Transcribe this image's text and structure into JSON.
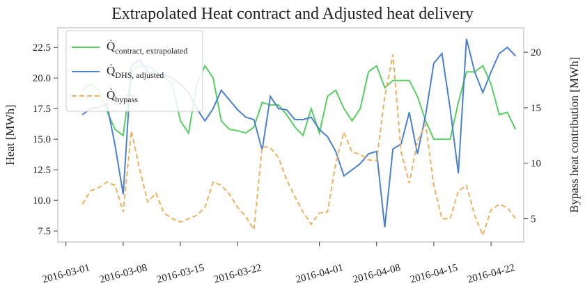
{
  "chart_data": {
    "type": "line",
    "title": "Extrapolated Heat contract and Adjusted heat delivery",
    "ylabel": "Heat [MWh]",
    "y2label": "Bypass heat contribution [MWh]",
    "x": [
      "2016-03-03",
      "2016-03-04",
      "2016-03-05",
      "2016-03-06",
      "2016-03-07",
      "2016-03-08",
      "2016-03-09",
      "2016-03-10",
      "2016-03-11",
      "2016-03-12",
      "2016-03-13",
      "2016-03-14",
      "2016-03-15",
      "2016-03-16",
      "2016-03-17",
      "2016-03-18",
      "2016-03-19",
      "2016-03-20",
      "2016-03-21",
      "2016-03-22",
      "2016-03-23",
      "2016-03-24",
      "2016-03-25",
      "2016-03-26",
      "2016-03-27",
      "2016-03-28",
      "2016-03-29",
      "2016-03-30",
      "2016-03-31",
      "2016-04-01",
      "2016-04-02",
      "2016-04-03",
      "2016-04-04",
      "2016-04-05",
      "2016-04-06",
      "2016-04-07",
      "2016-04-08",
      "2016-04-09",
      "2016-04-10",
      "2016-04-11",
      "2016-04-12",
      "2016-04-13",
      "2016-04-14",
      "2016-04-15",
      "2016-04-16",
      "2016-04-17",
      "2016-04-18",
      "2016-04-19",
      "2016-04-20",
      "2016-04-21",
      "2016-04-22",
      "2016-04-23",
      "2016-04-24",
      "2016-04-25"
    ],
    "series": [
      {
        "name": "Q̇",
        "name_sub": "contract, extrapolated",
        "color": "#55d060",
        "dash": false,
        "axis": "y",
        "values": [
          19.0,
          19.5,
          19.0,
          17.3,
          15.8,
          15.3,
          20.5,
          21.0,
          21.0,
          20.5,
          20.1,
          19.5,
          16.5,
          15.5,
          19.5,
          21.0,
          20.0,
          16.5,
          15.8,
          15.7,
          15.5,
          16.0,
          18.0,
          17.8,
          17.8,
          17.0,
          16.0,
          15.3,
          17.5,
          15.5,
          18.5,
          19.0,
          17.5,
          16.5,
          17.5,
          20.5,
          21.0,
          19.2,
          19.8,
          19.8,
          19.8,
          18.5,
          16.5,
          15.0,
          15.0,
          15.0,
          18.0,
          20.5,
          20.5,
          21.0,
          19.5,
          17.0,
          17.2,
          15.8
        ]
      },
      {
        "name": "Q̇",
        "name_sub": "DHS, adjusted",
        "color": "#4a80d0",
        "dash": false,
        "axis": "y",
        "values": [
          17.0,
          17.5,
          17.6,
          17.9,
          14.5,
          10.5,
          21.0,
          21.5,
          20.5,
          20.3,
          20.3,
          20.0,
          19.5,
          18.8,
          17.5,
          16.5,
          17.5,
          19.0,
          18.2,
          17.4,
          16.8,
          16.6,
          14.1,
          18.5,
          17.5,
          17.4,
          16.6,
          16.6,
          16.8,
          15.8,
          15.2,
          14.0,
          12.0,
          12.5,
          13.0,
          13.8,
          14.0,
          7.8,
          14.2,
          14.6,
          17.2,
          13.8,
          17.0,
          21.2,
          22.0,
          17.5,
          12.2,
          23.2,
          20.5,
          18.8,
          20.5,
          22.0,
          22.5,
          21.8
        ]
      },
      {
        "name": "Q̇",
        "name_sub": "bypass",
        "color": "#f0b060",
        "dash": true,
        "axis": "y2",
        "values": [
          6.3,
          7.5,
          7.8,
          8.3,
          8.0,
          5.6,
          12.9,
          9.5,
          6.5,
          7.3,
          5.5,
          5.0,
          4.7,
          5.0,
          5.3,
          6.0,
          8.3,
          8.0,
          7.2,
          6.0,
          5.2,
          4.0,
          11.5,
          11.4,
          10.5,
          8.5,
          7.0,
          5.6,
          4.5,
          5.5,
          5.6,
          10.0,
          12.8,
          11.0,
          10.8,
          10.3,
          10.2,
          16.0,
          19.8,
          11.0,
          8.2,
          12.0,
          13.5,
          8.0,
          5.0,
          5.0,
          7.5,
          8.0,
          5.3,
          3.5,
          5.8,
          6.3,
          6.0,
          5.0
        ]
      }
    ],
    "xlim": [
      "2016-02-29",
      "2016-04-26"
    ],
    "xticks": [
      "2016-03-01",
      "2016-03-08",
      "2016-03-15",
      "2016-03-22",
      "2016-04-01",
      "2016-04-08",
      "2016-04-15",
      "2016-04-22"
    ],
    "ylim": [
      6.6,
      24.1
    ],
    "yticks": [
      7.5,
      {
        "value": 10,
        "label": "10.0"
      },
      12.5,
      {
        "value": 15,
        "label": "15.0"
      },
      17.5,
      {
        "value": 20,
        "label": "20.0"
      },
      22.5
    ],
    "y2lim": [
      2.9,
      22.2
    ],
    "y2ticks": [
      5,
      10,
      15,
      20
    ],
    "legend": "upper left",
    "grid": false
  }
}
